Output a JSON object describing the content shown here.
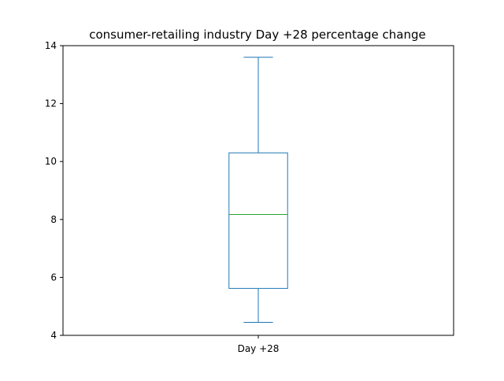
{
  "chart_data": {
    "type": "box",
    "title": "consumer-retailing industry Day +28 percentage change",
    "xlabel": "",
    "ylabel": "",
    "categories": [
      "Day +28"
    ],
    "boxes": [
      {
        "category": "Day +28",
        "whisker_low": 4.45,
        "q1": 5.62,
        "median": 8.17,
        "q3": 10.3,
        "whisker_high": 13.6
      }
    ],
    "ylim": [
      4,
      14
    ],
    "yticks": [
      "4",
      "6",
      "8",
      "10",
      "12",
      "14"
    ],
    "grid": false,
    "legend": "none",
    "colors": {
      "box": "#1f77b4",
      "median": "#2ca02c",
      "axes": "#000000"
    }
  }
}
